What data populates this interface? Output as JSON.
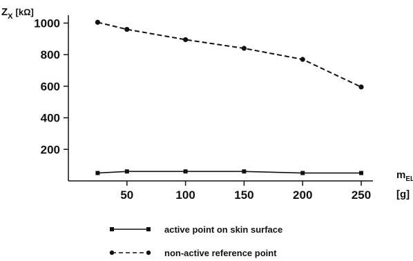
{
  "chart_data": {
    "type": "line",
    "title": "",
    "ylabel": {
      "main": "Z",
      "sub": "X",
      "unit": "[kΩ]"
    },
    "xlabel": {
      "main": "m",
      "sub": "EL",
      "unit": "[g]"
    },
    "xticks": [
      50,
      100,
      150,
      200,
      250
    ],
    "yticks": [
      200,
      400,
      600,
      800,
      1000
    ],
    "xlim": [
      0,
      260
    ],
    "ylim": [
      0,
      1050
    ],
    "grid": false,
    "legend_position": "bottom",
    "series": [
      {
        "name": "active point on skin surface",
        "style": "solid",
        "color": "#111111",
        "marker": "square",
        "x": [
          25,
          50,
          100,
          150,
          200,
          250
        ],
        "y": [
          50,
          60,
          60,
          60,
          50,
          50
        ]
      },
      {
        "name": "non-active reference point",
        "style": "dashed",
        "color": "#111111",
        "marker": "circle",
        "x": [
          25,
          50,
          100,
          150,
          200,
          250
        ],
        "y": [
          1005,
          960,
          895,
          840,
          770,
          595
        ]
      }
    ]
  }
}
